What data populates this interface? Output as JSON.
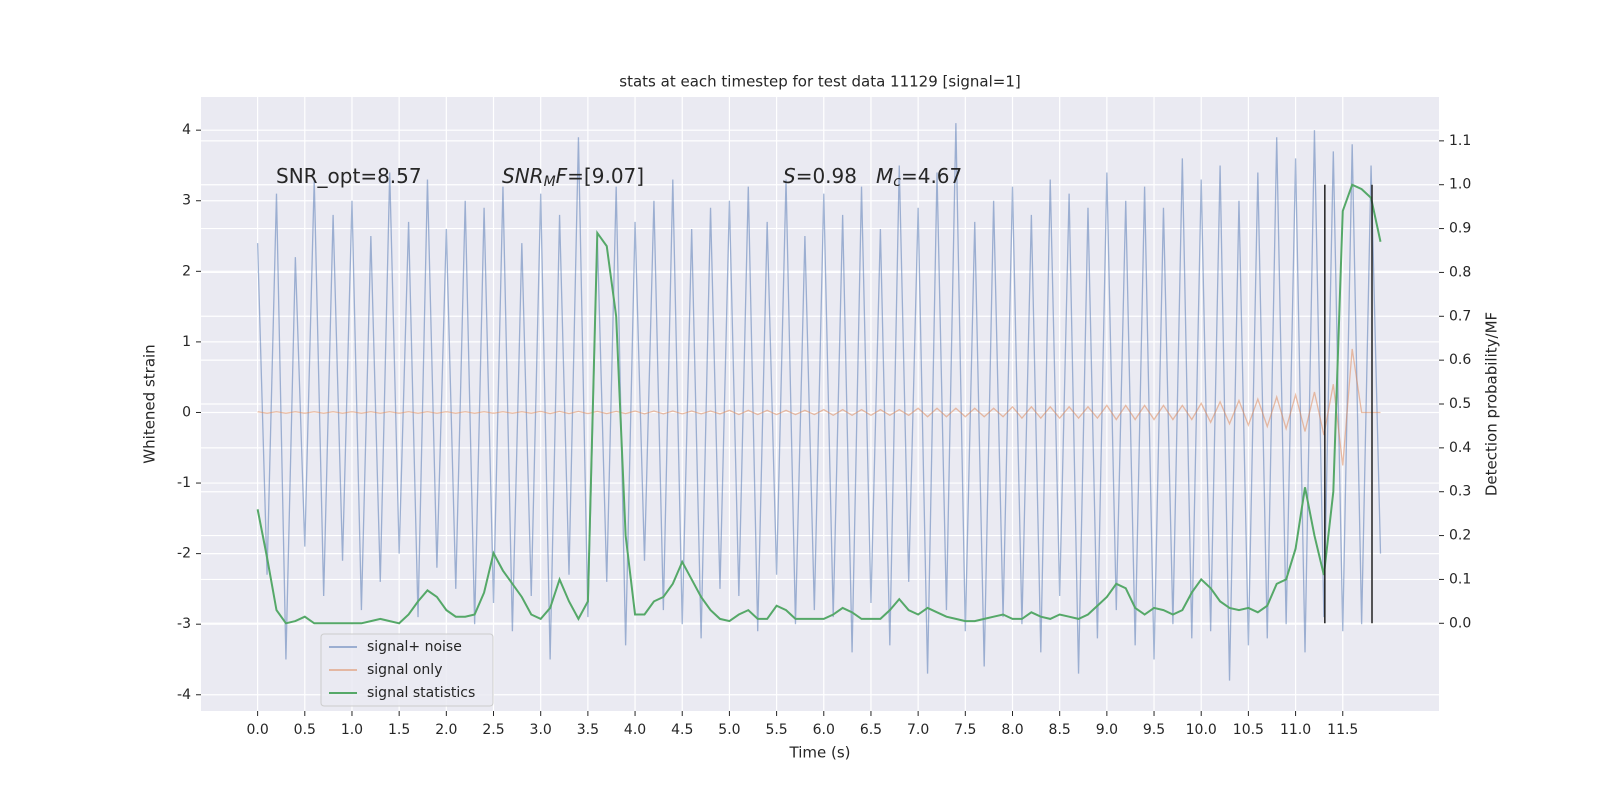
{
  "chart_data": {
    "type": "line",
    "title": "stats at each timestep for test data 11129 [signal=1]",
    "xlabel": "Time (s)",
    "ylabel": "Whitened strain",
    "y2label": "Detection probability/MF",
    "background": "#eaeaf2",
    "grid": true,
    "legend": "lower left",
    "xlim": [
      -0.6,
      12.52
    ],
    "xticks": [
      {
        "value": 0,
        "label": "0.0"
      },
      0.5,
      {
        "value": 1,
        "label": "1.0"
      },
      1.5,
      {
        "value": 2,
        "label": "2.0"
      },
      2.5,
      {
        "value": 3,
        "label": "3.0"
      },
      3.5,
      {
        "value": 4,
        "label": "4.0"
      },
      4.5,
      {
        "value": 5,
        "label": "5.0"
      },
      5.5,
      {
        "value": 6,
        "label": "6.0"
      },
      6.5,
      {
        "value": 7,
        "label": "7.0"
      },
      7.5,
      {
        "value": 8,
        "label": "8.0"
      },
      8.5,
      {
        "value": 9,
        "label": "9.0"
      },
      9.5,
      {
        "value": 10,
        "label": "10.0"
      },
      10.5,
      {
        "value": 11,
        "label": "11.0"
      },
      11.5
    ],
    "ylim": [
      -4.23,
      4.47
    ],
    "yticks": [
      -4,
      -3,
      -2,
      -1,
      0,
      1,
      2,
      3,
      4
    ],
    "y2lim": [
      -0.2,
      1.2
    ],
    "y2ticks": [
      {
        "value": 0,
        "label": "0.0"
      },
      0.1,
      0.2,
      0.3,
      0.4,
      0.5,
      0.6,
      0.7,
      0.8,
      0.9,
      {
        "value": 1,
        "label": "1.0"
      },
      1.1
    ],
    "annotations": [
      [
        {
          "text": "SNR_opt=8.57"
        }
      ],
      [
        {
          "text": "SNR",
          "italic": true
        },
        {
          "text": "M",
          "italic": true,
          "sub": true
        },
        {
          "text": "F",
          "italic": true
        },
        {
          "text": "=[9.07]"
        }
      ],
      [
        {
          "text": "S",
          "italic": true
        },
        {
          "text": "=0.98"
        }
      ],
      [
        {
          "text": "M",
          "italic": true
        },
        {
          "text": "c",
          "italic": true,
          "sub": true
        },
        {
          "text": "=4.67"
        }
      ]
    ],
    "x": [
      0,
      0.1,
      0.2,
      0.3,
      0.4,
      0.5,
      0.6,
      0.7,
      0.8,
      0.9,
      1,
      1.1,
      1.2,
      1.3,
      1.4,
      1.5,
      1.6,
      1.7,
      1.8,
      1.9,
      2,
      2.1,
      2.2,
      2.3,
      2.4,
      2.5,
      2.6,
      2.7,
      2.8,
      2.9,
      3,
      3.1,
      3.2,
      3.3,
      3.4,
      3.5,
      3.6,
      3.7,
      3.8,
      3.9,
      4,
      4.1,
      4.2,
      4.3,
      4.4,
      4.5,
      4.6,
      4.7,
      4.8,
      4.9,
      5,
      5.1,
      5.2,
      5.3,
      5.4,
      5.5,
      5.6,
      5.7,
      5.8,
      5.9,
      6,
      6.1,
      6.2,
      6.3,
      6.4,
      6.5,
      6.6,
      6.7,
      6.8,
      6.9,
      7,
      7.1,
      7.2,
      7.3,
      7.4,
      7.5,
      7.6,
      7.7,
      7.8,
      7.9,
      8,
      8.1,
      8.2,
      8.3,
      8.4,
      8.5,
      8.6,
      8.7,
      8.8,
      8.9,
      9,
      9.1,
      9.2,
      9.3,
      9.4,
      9.5,
      9.6,
      9.7,
      9.8,
      9.9,
      10,
      10.1,
      10.2,
      10.3,
      10.4,
      10.5,
      10.6,
      10.7,
      10.8,
      10.9,
      11,
      11.1,
      11.2,
      11.3,
      11.4,
      11.5,
      11.6,
      11.7,
      11.8,
      11.9
    ],
    "series": [
      {
        "name": "signal+ noise",
        "color": "#4c72b0",
        "alpha": 0.5,
        "values": [
          2.4,
          -2.3,
          3.1,
          -3.5,
          2.2,
          -1.9,
          3.3,
          -2.6,
          2.8,
          -2.1,
          3.0,
          -2.8,
          2.5,
          -2.4,
          3.4,
          -2.0,
          2.7,
          -2.9,
          3.3,
          -2.2,
          2.6,
          -2.5,
          3.0,
          -3.0,
          2.9,
          -2.7,
          3.2,
          -3.1,
          2.4,
          -2.6,
          3.1,
          -3.5,
          2.8,
          -2.3,
          3.9,
          -2.9,
          2.5,
          -2.4,
          3.2,
          -3.3,
          2.7,
          -2.1,
          3.0,
          -2.8,
          3.3,
          -3.0,
          2.6,
          -3.2,
          2.9,
          -2.5,
          3.0,
          -2.6,
          3.2,
          -3.1,
          2.7,
          -2.3,
          3.3,
          -3.0,
          2.5,
          -2.8,
          3.1,
          -2.9,
          2.8,
          -3.4,
          3.2,
          -2.7,
          2.6,
          -3.3,
          3.5,
          -2.4,
          2.9,
          -3.7,
          3.4,
          -2.8,
          4.1,
          -3.1,
          2.7,
          -3.6,
          3.0,
          -2.9,
          3.2,
          -3.0,
          2.8,
          -3.4,
          3.3,
          -2.6,
          3.1,
          -3.7,
          2.9,
          -3.2,
          3.4,
          -2.8,
          3.0,
          -3.3,
          3.2,
          -3.5,
          2.9,
          -3.0,
          3.6,
          -3.2,
          3.3,
          -3.1,
          3.5,
          -3.8,
          3.0,
          -3.3,
          3.4,
          -3.2,
          3.9,
          -3.0,
          3.6,
          -3.4,
          4.0,
          -2.9,
          3.7,
          -3.1,
          3.8,
          -3.0,
          3.5,
          -2.0
        ]
      },
      {
        "name": "signal only",
        "color": "#dd8452",
        "alpha": 0.5,
        "values": [
          0.01,
          -0.01,
          0.01,
          -0.01,
          0.01,
          -0.01,
          0.01,
          -0.01,
          0.01,
          -0.01,
          0.01,
          -0.01,
          0.01,
          -0.01,
          0.01,
          -0.01,
          0.01,
          -0.01,
          0.01,
          -0.01,
          0.01,
          -0.01,
          0.01,
          -0.01,
          0.01,
          -0.01,
          0.01,
          -0.01,
          0.01,
          -0.01,
          0.015,
          -0.015,
          0.015,
          -0.015,
          0.015,
          -0.015,
          0.015,
          -0.015,
          0.015,
          -0.015,
          0.02,
          -0.02,
          0.02,
          -0.02,
          0.02,
          -0.02,
          0.02,
          -0.02,
          0.02,
          -0.02,
          0.03,
          -0.03,
          0.03,
          -0.03,
          0.03,
          -0.03,
          0.03,
          -0.03,
          0.03,
          -0.03,
          0.04,
          -0.04,
          0.04,
          -0.04,
          0.04,
          -0.04,
          0.04,
          -0.04,
          0.04,
          -0.04,
          0.06,
          -0.06,
          0.06,
          -0.06,
          0.06,
          -0.06,
          0.06,
          -0.06,
          0.06,
          -0.06,
          0.08,
          -0.08,
          0.08,
          -0.08,
          0.08,
          -0.08,
          0.08,
          -0.08,
          0.08,
          -0.08,
          0.1,
          -0.1,
          0.1,
          -0.1,
          0.1,
          -0.1,
          0.1,
          -0.1,
          0.1,
          -0.1,
          0.13,
          -0.14,
          0.15,
          -0.16,
          0.17,
          -0.18,
          0.19,
          -0.2,
          0.22,
          -0.23,
          0.25,
          -0.27,
          0.29,
          -0.32,
          0.4,
          -0.75,
          0.9,
          0,
          0,
          0
        ]
      },
      {
        "name": "signal statistics",
        "color": "#55a868",
        "alpha": 1,
        "axis": "y2",
        "values": [
          0.26,
          0.15,
          0.03,
          0.0,
          0.005,
          0.015,
          0.0,
          0.0,
          0.0,
          0.0,
          0.0,
          0.0,
          0.005,
          0.01,
          0.005,
          0.0,
          0.02,
          0.05,
          0.075,
          0.06,
          0.03,
          0.015,
          0.015,
          0.02,
          0.07,
          0.16,
          0.12,
          0.09,
          0.06,
          0.02,
          0.01,
          0.035,
          0.1,
          0.05,
          0.01,
          0.05,
          0.89,
          0.86,
          0.7,
          0.2,
          0.02,
          0.02,
          0.05,
          0.06,
          0.09,
          0.14,
          0.1,
          0.06,
          0.03,
          0.01,
          0.005,
          0.02,
          0.03,
          0.01,
          0.01,
          0.04,
          0.03,
          0.01,
          0.01,
          0.01,
          0.01,
          0.02,
          0.035,
          0.025,
          0.01,
          0.01,
          0.01,
          0.03,
          0.055,
          0.03,
          0.02,
          0.035,
          0.025,
          0.015,
          0.01,
          0.005,
          0.005,
          0.01,
          0.015,
          0.02,
          0.01,
          0.01,
          0.025,
          0.015,
          0.01,
          0.02,
          0.015,
          0.01,
          0.02,
          0.04,
          0.06,
          0.09,
          0.08,
          0.035,
          0.02,
          0.035,
          0.03,
          0.02,
          0.03,
          0.07,
          0.1,
          0.08,
          0.05,
          0.035,
          0.03,
          0.035,
          0.025,
          0.04,
          0.09,
          0.1,
          0.17,
          0.31,
          0.2,
          0.11,
          0.3,
          0.94,
          1.0,
          0.99,
          0.97,
          0.87
        ]
      }
    ],
    "vlines": {
      "x": [
        11.31,
        11.81
      ],
      "ymin": 0,
      "ymax": 1,
      "axis": "y2",
      "color": "#222222"
    }
  }
}
